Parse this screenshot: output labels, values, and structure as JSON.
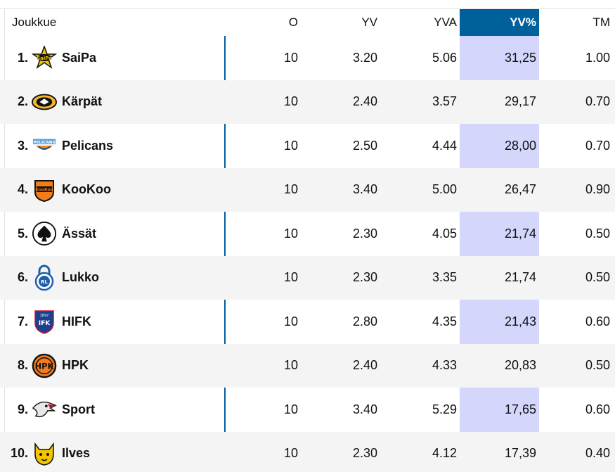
{
  "columns": {
    "team": "Joukkue",
    "o": "O",
    "yv": "YV",
    "yva": "YVA",
    "yv_pct": "YV%",
    "tm": "TM"
  },
  "active_column": "YV%",
  "colors": {
    "active_header": "#00609c",
    "active_column_bg": "#d4d6fb",
    "divider": "#00609c"
  },
  "rows": [
    {
      "rank": "1.",
      "team": "SaiPa",
      "logo": "saipa-logo-icon",
      "o": "10",
      "yv": "3.20",
      "yva": "5.06",
      "yv_pct": "31,25",
      "tm": "1.00"
    },
    {
      "rank": "2.",
      "team": "Kärpät",
      "logo": "karpat-logo-icon",
      "o": "10",
      "yv": "2.40",
      "yva": "3.57",
      "yv_pct": "29,17",
      "tm": "0.70"
    },
    {
      "rank": "3.",
      "team": "Pelicans",
      "logo": "pelicans-logo-icon",
      "o": "10",
      "yv": "2.50",
      "yva": "4.44",
      "yv_pct": "28,00",
      "tm": "0.70"
    },
    {
      "rank": "4.",
      "team": "KooKoo",
      "logo": "kookoo-logo-icon",
      "o": "10",
      "yv": "3.40",
      "yva": "5.00",
      "yv_pct": "26,47",
      "tm": "0.90"
    },
    {
      "rank": "5.",
      "team": "Ässät",
      "logo": "assat-logo-icon",
      "o": "10",
      "yv": "2.30",
      "yva": "4.05",
      "yv_pct": "21,74",
      "tm": "0.50"
    },
    {
      "rank": "6.",
      "team": "Lukko",
      "logo": "lukko-logo-icon",
      "o": "10",
      "yv": "2.30",
      "yva": "3.35",
      "yv_pct": "21,74",
      "tm": "0.50"
    },
    {
      "rank": "7.",
      "team": "HIFK",
      "logo": "hifk-logo-icon",
      "o": "10",
      "yv": "2.80",
      "yva": "4.35",
      "yv_pct": "21,43",
      "tm": "0.60"
    },
    {
      "rank": "8.",
      "team": "HPK",
      "logo": "hpk-logo-icon",
      "o": "10",
      "yv": "2.40",
      "yva": "4.33",
      "yv_pct": "20,83",
      "tm": "0.50"
    },
    {
      "rank": "9.",
      "team": "Sport",
      "logo": "sport-logo-icon",
      "o": "10",
      "yv": "3.40",
      "yva": "5.29",
      "yv_pct": "17,65",
      "tm": "0.60"
    },
    {
      "rank": "10.",
      "team": "Ilves",
      "logo": "ilves-logo-icon",
      "o": "10",
      "yv": "2.30",
      "yva": "4.12",
      "yv_pct": "17,39",
      "tm": "0.40"
    }
  ]
}
